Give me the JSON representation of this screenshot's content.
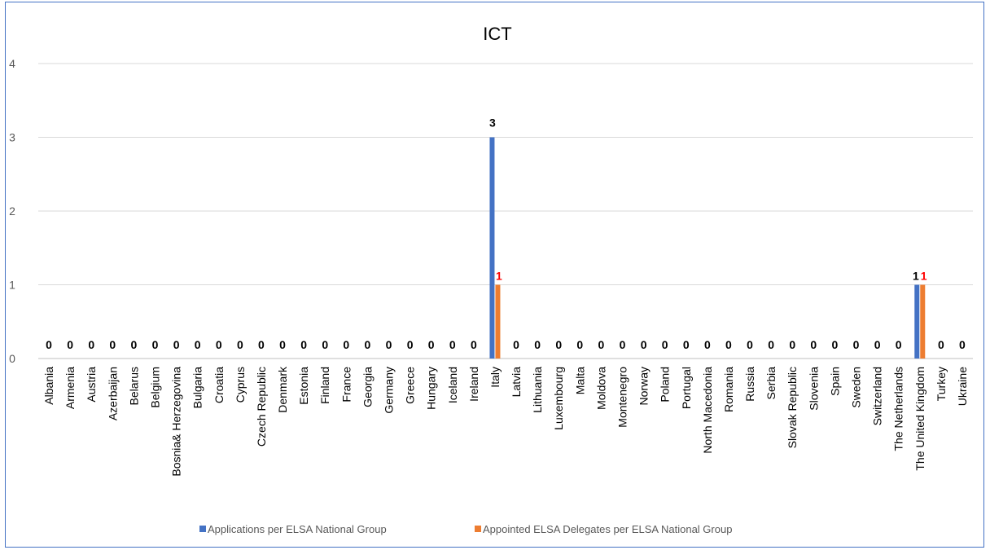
{
  "chart_data": {
    "type": "bar",
    "title": "ICT",
    "xlabel": "",
    "ylabel": "",
    "ylim": [
      0,
      4
    ],
    "yticks": [
      "0",
      "1",
      "2",
      "3",
      "4"
    ],
    "grid": true,
    "legend_position": "bottom",
    "categories": [
      "Albania",
      "Armenia",
      "Austria",
      "Azerbaijan",
      "Belarus",
      "Belgium",
      "Bosnia& Herzegovina",
      "Bulgaria",
      "Croatia",
      "Cyprus",
      "Czech Republic",
      "Denmark",
      "Estonia",
      "Finland",
      "France",
      "Georgia",
      "Germany",
      "Greece",
      "Hungary",
      "Iceland",
      "Ireland",
      "Italy",
      "Latvia",
      "Lithuania",
      "Luxembourg",
      "Malta",
      "Moldova",
      "Montenegro",
      "Norway",
      "Poland",
      "Portugal",
      "North Macedonia",
      "Romania",
      "Russia",
      "Serbia",
      "Slovak Republic",
      "Slovenia",
      "Spain",
      "Sweden",
      "Switzerland",
      "The Netherlands",
      "The United Kingdom",
      "Turkey",
      "Ukraine"
    ],
    "series": [
      {
        "name": "Applications per ELSA National Group",
        "color": "#4472c4",
        "label_color": "#000000",
        "values": [
          0,
          0,
          0,
          0,
          0,
          0,
          0,
          0,
          0,
          0,
          0,
          0,
          0,
          0,
          0,
          0,
          0,
          0,
          0,
          0,
          0,
          3,
          0,
          0,
          0,
          0,
          0,
          0,
          0,
          0,
          0,
          0,
          0,
          0,
          0,
          0,
          0,
          0,
          0,
          0,
          0,
          1,
          0,
          0
        ]
      },
      {
        "name": "Appointed ELSA Delegates per ELSA National Group",
        "color": "#ed7d31",
        "label_color": "#ff0000",
        "values": [
          null,
          null,
          null,
          null,
          null,
          null,
          null,
          null,
          null,
          null,
          null,
          null,
          null,
          null,
          null,
          null,
          null,
          null,
          null,
          null,
          null,
          1,
          null,
          null,
          null,
          null,
          null,
          null,
          null,
          null,
          null,
          null,
          null,
          null,
          null,
          null,
          null,
          null,
          null,
          null,
          null,
          1,
          null,
          null
        ]
      }
    ]
  }
}
